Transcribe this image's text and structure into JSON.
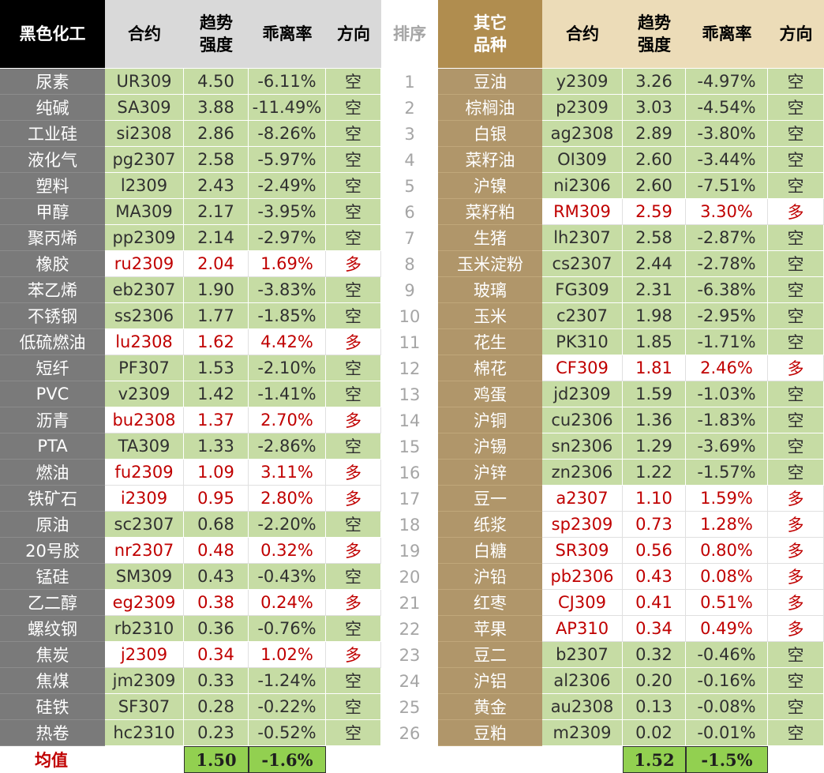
{
  "left_header": {
    "category": "黑色化工",
    "code": "合约",
    "trend": "趋势\n强度",
    "deviation": "乖离率",
    "direction": "方向"
  },
  "rank_header": "排序",
  "right_header": {
    "category": "其它\n品种",
    "code": "合约",
    "trend": "趋势\n强度",
    "deviation": "乖离率",
    "direction": "方向"
  },
  "left_rows": [
    {
      "name": "尿素",
      "code": "UR309",
      "trend": "4.50",
      "dev": "-6.11%",
      "dir": "空"
    },
    {
      "name": "纯碱",
      "code": "SA309",
      "trend": "3.88",
      "dev": "-11.49%",
      "dir": "空"
    },
    {
      "name": "工业硅",
      "code": "si2308",
      "trend": "2.86",
      "dev": "-8.26%",
      "dir": "空"
    },
    {
      "name": "液化气",
      "code": "pg2307",
      "trend": "2.58",
      "dev": "-5.97%",
      "dir": "空"
    },
    {
      "name": "塑料",
      "code": "l2309",
      "trend": "2.43",
      "dev": "-2.49%",
      "dir": "空"
    },
    {
      "name": "甲醇",
      "code": "MA309",
      "trend": "2.17",
      "dev": "-3.95%",
      "dir": "空"
    },
    {
      "name": "聚丙烯",
      "code": "pp2309",
      "trend": "2.14",
      "dev": "-2.97%",
      "dir": "空"
    },
    {
      "name": "橡胶",
      "code": "ru2309",
      "trend": "2.04",
      "dev": "1.69%",
      "dir": "多"
    },
    {
      "name": "苯乙烯",
      "code": "eb2307",
      "trend": "1.90",
      "dev": "-3.83%",
      "dir": "空"
    },
    {
      "name": "不锈钢",
      "code": "ss2306",
      "trend": "1.77",
      "dev": "-1.85%",
      "dir": "空"
    },
    {
      "name": "低硫燃油",
      "code": "lu2308",
      "trend": "1.62",
      "dev": "4.42%",
      "dir": "多"
    },
    {
      "name": "短纤",
      "code": "PF307",
      "trend": "1.53",
      "dev": "-2.10%",
      "dir": "空"
    },
    {
      "name": "PVC",
      "code": "v2309",
      "trend": "1.42",
      "dev": "-1.41%",
      "dir": "空"
    },
    {
      "name": "沥青",
      "code": "bu2308",
      "trend": "1.37",
      "dev": "2.70%",
      "dir": "多"
    },
    {
      "name": "PTA",
      "code": "TA309",
      "trend": "1.33",
      "dev": "-2.86%",
      "dir": "空"
    },
    {
      "name": "燃油",
      "code": "fu2309",
      "trend": "1.09",
      "dev": "3.11%",
      "dir": "多"
    },
    {
      "name": "铁矿石",
      "code": "i2309",
      "trend": "0.95",
      "dev": "2.80%",
      "dir": "多"
    },
    {
      "name": "原油",
      "code": "sc2307",
      "trend": "0.68",
      "dev": "-2.20%",
      "dir": "空"
    },
    {
      "name": "20号胶",
      "code": "nr2307",
      "trend": "0.48",
      "dev": "0.32%",
      "dir": "多"
    },
    {
      "name": "锰硅",
      "code": "SM309",
      "trend": "0.43",
      "dev": "-0.43%",
      "dir": "空"
    },
    {
      "name": "乙二醇",
      "code": "eg2309",
      "trend": "0.38",
      "dev": "0.24%",
      "dir": "多"
    },
    {
      "name": "螺纹钢",
      "code": "rb2310",
      "trend": "0.36",
      "dev": "-0.76%",
      "dir": "空"
    },
    {
      "name": "焦炭",
      "code": "j2309",
      "trend": "0.34",
      "dev": "1.02%",
      "dir": "多"
    },
    {
      "name": "焦煤",
      "code": "jm2309",
      "trend": "0.33",
      "dev": "-1.24%",
      "dir": "空"
    },
    {
      "name": "硅铁",
      "code": "SF307",
      "trend": "0.28",
      "dev": "-0.22%",
      "dir": "空"
    },
    {
      "name": "热卷",
      "code": "hc2310",
      "trend": "0.23",
      "dev": "-0.52%",
      "dir": "空"
    }
  ],
  "right_rows": [
    {
      "rank": "1",
      "name": "豆油",
      "code": "y2309",
      "trend": "3.26",
      "dev": "-4.97%",
      "dir": "空"
    },
    {
      "rank": "2",
      "name": "棕榈油",
      "code": "p2309",
      "trend": "3.03",
      "dev": "-4.54%",
      "dir": "空"
    },
    {
      "rank": "3",
      "name": "白银",
      "code": "ag2308",
      "trend": "2.89",
      "dev": "-3.80%",
      "dir": "空"
    },
    {
      "rank": "4",
      "name": "菜籽油",
      "code": "OI309",
      "trend": "2.60",
      "dev": "-3.44%",
      "dir": "空"
    },
    {
      "rank": "5",
      "name": "沪镍",
      "code": "ni2306",
      "trend": "2.60",
      "dev": "-7.51%",
      "dir": "空"
    },
    {
      "rank": "6",
      "name": "菜籽粕",
      "code": "RM309",
      "trend": "2.59",
      "dev": "3.30%",
      "dir": "多"
    },
    {
      "rank": "7",
      "name": "生猪",
      "code": "lh2307",
      "trend": "2.58",
      "dev": "-2.87%",
      "dir": "空"
    },
    {
      "rank": "8",
      "name": "玉米淀粉",
      "code": "cs2307",
      "trend": "2.44",
      "dev": "-2.78%",
      "dir": "空"
    },
    {
      "rank": "9",
      "name": "玻璃",
      "code": "FG309",
      "trend": "2.31",
      "dev": "-6.38%",
      "dir": "空"
    },
    {
      "rank": "10",
      "name": "玉米",
      "code": "c2307",
      "trend": "1.98",
      "dev": "-2.95%",
      "dir": "空"
    },
    {
      "rank": "11",
      "name": "花生",
      "code": "PK310",
      "trend": "1.85",
      "dev": "-1.71%",
      "dir": "空"
    },
    {
      "rank": "12",
      "name": "棉花",
      "code": "CF309",
      "trend": "1.81",
      "dev": "2.46%",
      "dir": "多"
    },
    {
      "rank": "13",
      "name": "鸡蛋",
      "code": "jd2309",
      "trend": "1.59",
      "dev": "-1.03%",
      "dir": "空"
    },
    {
      "rank": "14",
      "name": "沪铜",
      "code": "cu2306",
      "trend": "1.36",
      "dev": "-1.83%",
      "dir": "空"
    },
    {
      "rank": "15",
      "name": "沪锡",
      "code": "sn2306",
      "trend": "1.29",
      "dev": "-3.69%",
      "dir": "空"
    },
    {
      "rank": "16",
      "name": "沪锌",
      "code": "zn2306",
      "trend": "1.22",
      "dev": "-1.57%",
      "dir": "空"
    },
    {
      "rank": "17",
      "name": "豆一",
      "code": "a2307",
      "trend": "1.10",
      "dev": "1.59%",
      "dir": "多"
    },
    {
      "rank": "18",
      "name": "纸浆",
      "code": "sp2309",
      "trend": "0.73",
      "dev": "1.28%",
      "dir": "多"
    },
    {
      "rank": "19",
      "name": "白糖",
      "code": "SR309",
      "trend": "0.56",
      "dev": "0.80%",
      "dir": "多"
    },
    {
      "rank": "20",
      "name": "沪铅",
      "code": "pb2306",
      "trend": "0.43",
      "dev": "0.08%",
      "dir": "多"
    },
    {
      "rank": "21",
      "name": "红枣",
      "code": "CJ309",
      "trend": "0.41",
      "dev": "0.51%",
      "dir": "多"
    },
    {
      "rank": "22",
      "name": "苹果",
      "code": "AP310",
      "trend": "0.34",
      "dev": "0.49%",
      "dir": "多"
    },
    {
      "rank": "23",
      "name": "豆二",
      "code": "b2307",
      "trend": "0.32",
      "dev": "-0.46%",
      "dir": "空"
    },
    {
      "rank": "24",
      "name": "沪铝",
      "code": "al2306",
      "trend": "0.20",
      "dev": "-0.16%",
      "dir": "空"
    },
    {
      "rank": "25",
      "name": "黄金",
      "code": "au2308",
      "trend": "0.13",
      "dev": "-0.08%",
      "dir": "空"
    },
    {
      "rank": "26",
      "name": "豆粕",
      "code": "m2309",
      "trend": "0.02",
      "dev": "-0.01%",
      "dir": "空"
    }
  ],
  "average": {
    "label": "均值",
    "left_trend": "1.50",
    "left_dev": "-1.6%",
    "right_trend": "1.52",
    "right_dev": "-1.5%"
  },
  "colors": {
    "short_bg": "#c6dca4",
    "long_text": "#c00000",
    "left_name_bg": "#7a7a7a",
    "right_name_bg": "#b0966a",
    "avg_bg": "#92d050"
  }
}
